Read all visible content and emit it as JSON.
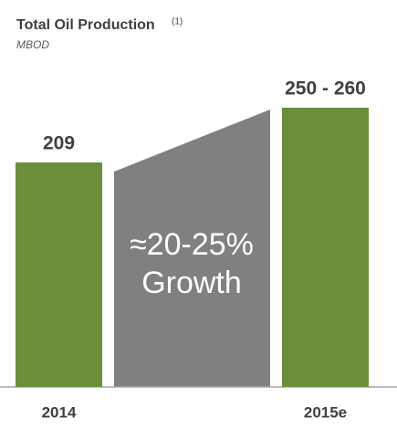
{
  "chart_data": {
    "type": "bar",
    "title": "Total Oil Production",
    "title_note": "(1)",
    "subtitle": "MBOD",
    "categories": [
      "2014",
      "2015e"
    ],
    "values": [
      209,
      260
    ],
    "value_labels": [
      "209",
      "250 - 260"
    ],
    "color": "#6b8e3a",
    "annotation": [
      "≈20-25%",
      "Growth"
    ]
  }
}
